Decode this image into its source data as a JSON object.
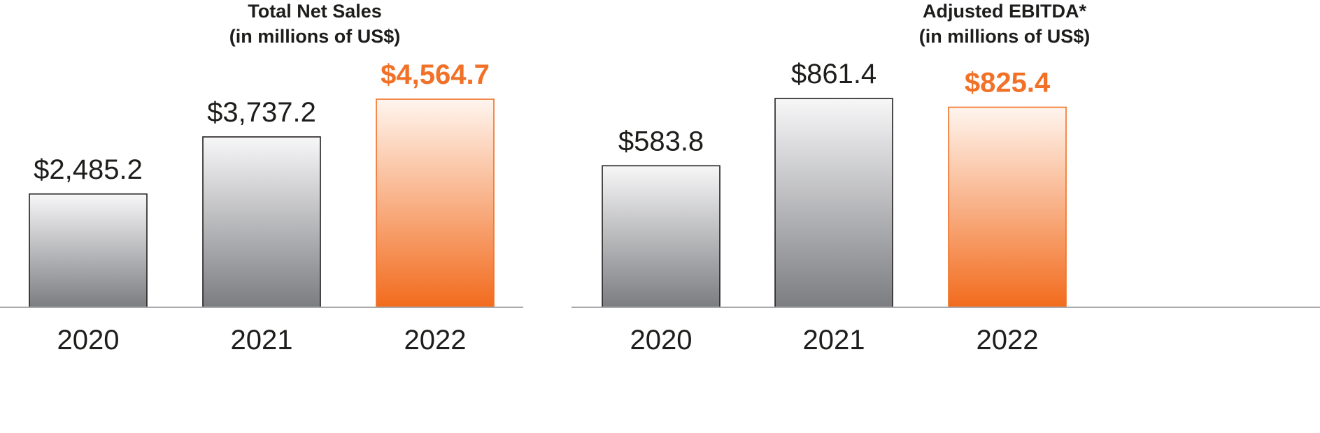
{
  "colors": {
    "accent": "#f07127",
    "bar_gray_top": "#f7f7f8",
    "bar_gray_bottom": "#7c7d81",
    "bar_orange_top": "#fff5ee",
    "bar_orange_bottom": "#f26b1d",
    "bar_outline_gray": "#231f20",
    "bar_outline_orange": "#f07127",
    "baseline": "#a7a9ac",
    "text": "#1d1d1b"
  },
  "chart_data": [
    {
      "type": "bar",
      "title": "Total Net Sales",
      "subtitle": "(in millions of US$)",
      "categories": [
        "2020",
        "2021",
        "2022"
      ],
      "values": [
        2485.2,
        3737.2,
        4564.7
      ],
      "value_labels": [
        "$2,485.2",
        "$3,737.2",
        "$4,564.7"
      ],
      "highlight_index": 2,
      "ylim": [
        0,
        4564.7
      ],
      "grid": false,
      "legend": "none"
    },
    {
      "type": "bar",
      "title": "Adjusted EBITDA*",
      "subtitle": "(in millions of US$)",
      "categories": [
        "2020",
        "2021",
        "2022"
      ],
      "values": [
        583.8,
        861.4,
        825.4
      ],
      "value_labels": [
        "$583.8",
        "$861.4",
        "$825.4"
      ],
      "highlight_index": 2,
      "ylim": [
        0,
        861.4
      ],
      "grid": false,
      "legend": "none"
    }
  ]
}
